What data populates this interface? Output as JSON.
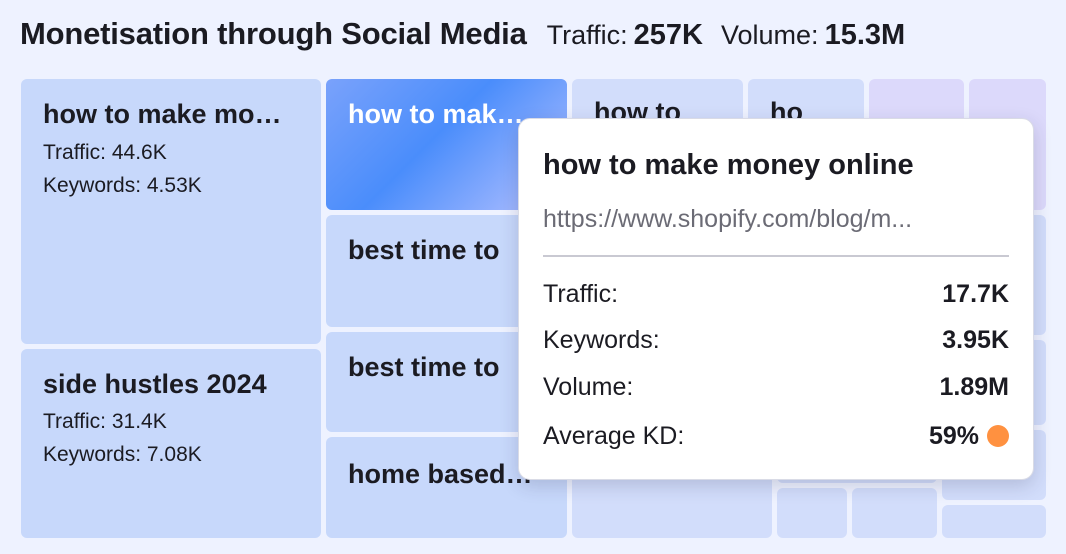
{
  "header": {
    "title": "Monetisation through Social Media",
    "traffic_label": "Traffic:",
    "traffic_value": "257K",
    "volume_label": "Volume:",
    "volume_value": "15.3M"
  },
  "tiles": [
    {
      "name": "how to make mo…",
      "traffic": "Traffic: 44.6K",
      "keywords": "Keywords: 4.53K"
    },
    {
      "name": "side hustles 2024",
      "traffic": "Traffic: 31.4K",
      "keywords": "Keywords: 7.08K"
    },
    {
      "name": "how to mak…"
    },
    {
      "name": "best time to"
    },
    {
      "name": "best time to"
    },
    {
      "name": "home based…"
    },
    {
      "name": "how to"
    },
    {
      "name": "ho"
    }
  ],
  "tooltip": {
    "title": "how to make money online",
    "url": "https://www.shopify.com/blog/m...",
    "rows": [
      {
        "label": "Traffic:",
        "value": "17.7K"
      },
      {
        "label": "Keywords:",
        "value": "3.95K"
      },
      {
        "label": "Volume:",
        "value": "1.89M"
      },
      {
        "label": "Average KD:",
        "value": "59%"
      }
    ],
    "kd_color": "#ff9140"
  },
  "colors": {
    "background": "#eef2ff",
    "tile": "#c7d8fb",
    "tile_hover_from": "#7aa2fb",
    "tile_hover_to": "#4a8dfb"
  }
}
